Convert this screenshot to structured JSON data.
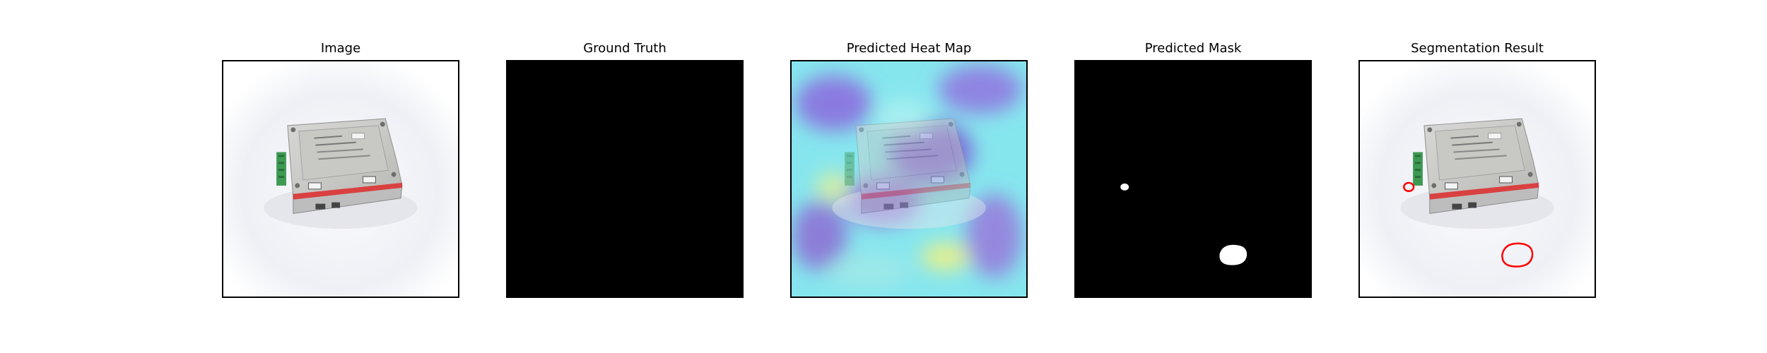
{
  "figure": {
    "panels": [
      {
        "title": "Image"
      },
      {
        "title": "Ground Truth"
      },
      {
        "title": "Predicted Heat Map"
      },
      {
        "title": "Predicted Mask"
      },
      {
        "title": "Segmentation Result"
      }
    ],
    "colors": {
      "mask_background": "#000000",
      "mask_foreground": "#ffffff",
      "contour": "#ff0000",
      "heatmap_cool": "#7ef0ee",
      "heatmap_low": "#8a6ee0",
      "heatmap_high": "#f0f080"
    }
  }
}
